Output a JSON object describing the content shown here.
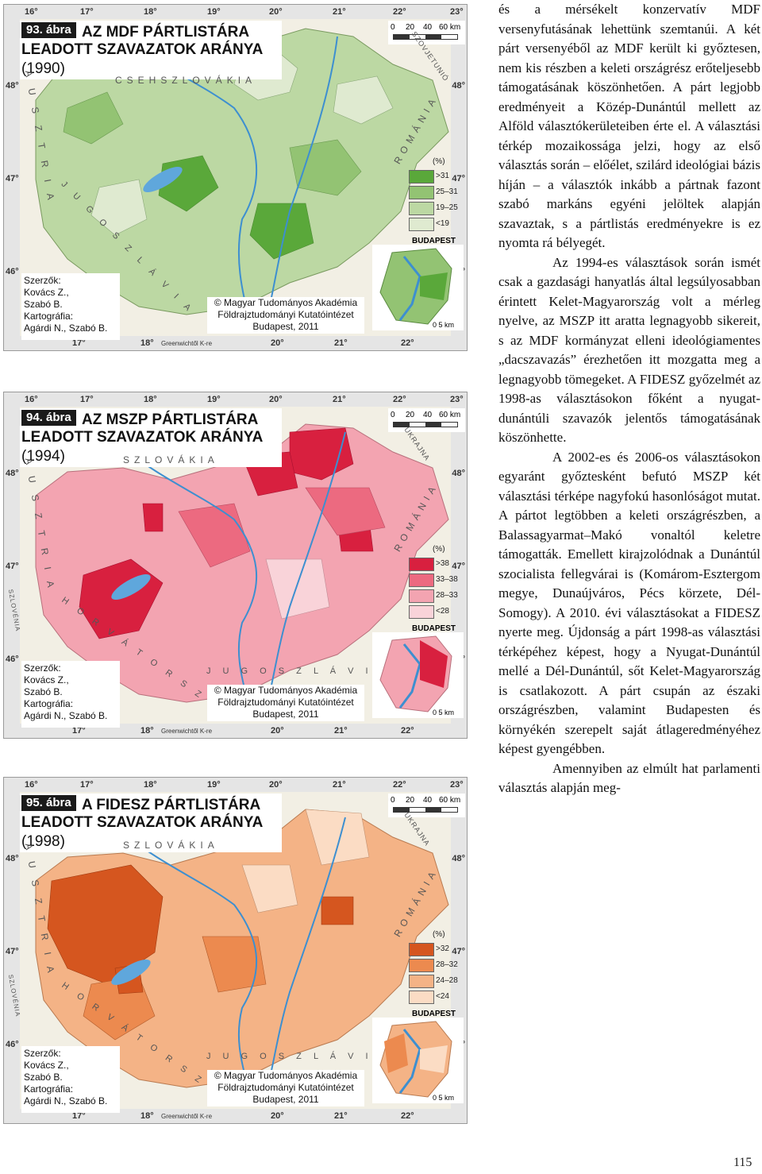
{
  "maps": [
    {
      "fig_num": "93. ábra",
      "title_line1": "AZ MDF PÁRTLISTÁRA",
      "title_line2": "LEADOTT SZAVAZATOK ARÁNYA",
      "year": "(1990)",
      "legend_unit": "(%)",
      "legend": [
        {
          "label": ">31",
          "color": "#5aa83a"
        },
        {
          "label": "25–31",
          "color": "#93c373"
        },
        {
          "label": "19–25",
          "color": "#bcd8a3"
        },
        {
          "label": "<19",
          "color": "#dfead0"
        }
      ],
      "base_color": "#bcd8a3",
      "countries": [
        "CSEHSZLOVÁKIA",
        "SZOVJETUNIÓ",
        "ROMÁNIA",
        "A U S Z T R I A",
        "J U G O S Z L Á V I A"
      ]
    },
    {
      "fig_num": "94. ábra",
      "title_line1": "AZ MSZP PÁRTLISTÁRA",
      "title_line2": "LEADOTT SZAVAZATOK ARÁNYA",
      "year": "(1994)",
      "legend_unit": "(%)",
      "legend": [
        {
          "label": ">38",
          "color": "#d8203f"
        },
        {
          "label": "33–38",
          "color": "#ec6a80"
        },
        {
          "label": "28–33",
          "color": "#f3a4b1"
        },
        {
          "label": "<28",
          "color": "#f9d3d9"
        }
      ],
      "base_color": "#f3a4b1",
      "countries": [
        "SZLOVÁKIA",
        "UKRAJNA",
        "ROMÁNIA",
        "A U S Z T R I A",
        "J U G O S Z L Á V I A",
        "H O R V Á T O R S Z Á G",
        "SZLOVÉNIA"
      ]
    },
    {
      "fig_num": "95. ábra",
      "title_line1": "A FIDESZ PÁRTLISTÁRA",
      "title_line2": "LEADOTT SZAVAZATOK ARÁNYA",
      "year": "(1998)",
      "legend_unit": "(%)",
      "legend": [
        {
          "label": ">32",
          "color": "#d5561f"
        },
        {
          "label": "28–32",
          "color": "#ec8a4f"
        },
        {
          "label": "24–28",
          "color": "#f4b386"
        },
        {
          "label": "<24",
          "color": "#fbdcc4"
        }
      ],
      "base_color": "#f4b386",
      "countries": [
        "SZLOVÁKIA",
        "UKRAJNA",
        "ROMÁNIA",
        "A U S Z T R I A",
        "J U G O S Z L Á V I A",
        "H O R V Á T O R S Z Á G",
        "SZLOVÉNIA"
      ]
    }
  ],
  "common": {
    "lon_top": [
      "16°",
      "17°",
      "18°",
      "19°",
      "20°",
      "21°",
      "22°",
      "23°"
    ],
    "lon_bottom": [
      "17°",
      "18°",
      "Greenwichtől K-re",
      "20°",
      "21°",
      "22°"
    ],
    "lat": [
      "48°",
      "47°",
      "46°"
    ],
    "scale_labels": [
      "0",
      "20",
      "40",
      "60 km"
    ],
    "budapest": "BUDAPEST",
    "bp_scale": "0    5 km",
    "authors": [
      "Szerzők:",
      "Kovács Z.,",
      "Szabó B.",
      "Kartográfia:",
      "Agárdi N., Szabó B."
    ],
    "copyright": [
      "© Magyar Tudományos Akadémia",
      "Földrajztudományi Kutatóintézet",
      "Budapest, 2011"
    ]
  },
  "text": {
    "p1": "és a mérsékelt konzervatív MDF versenyfutásának lehettünk szemtanúi. A két párt versenyéből az MDF került ki győztesen, nem kis részben a keleti országrész erőteljesebb támogatásának köszönhetően. A párt legjobb eredményeit a Közép-Dunántúl mellett az Alföld választókerületeiben érte el. A választási térkép mozaikossága jelzi, hogy az első választás során – előélet, szilárd ideológiai bázis híján – a választók inkább a pártnak fazont szabó markáns egyéni jelöltek alapján szavaztak, s a pártlistás eredményekre is ez nyomta rá bélyegét.",
    "p2": "Az 1994-es választások során ismét csak a gazdasági hanyatlás által legsúlyosabban érintett Kelet-Magyarország volt a mérleg nyelve, az MSZP itt aratta legnagyobb sikereit, s az MDF kormányzat elleni ideológiamentes „dacszavazás” érezhetően itt mozgatta meg a legnagyobb tömegeket. A FIDESZ győzelmét az 1998-as választásokon főként a nyugat-dunántúli szavazók jelentős támogatásának köszönhette.",
    "p3": "A 2002-es és 2006-os választásokon egyaránt győztesként befutó MSZP két választási térképe nagyfokú hasonlóságot mutat. A pártot legtöbben a keleti országrészben, a Balassagyarmat–Makó vonaltól keletre támogatták. Emellett kirajzolódnak a Dunántúl szocialista fellegvárai is (Komárom-Esztergom megye, Dunaújváros, Pécs körzete, Dél-Somogy). A 2010. évi választásokat a FIDESZ nyerte meg. Újdonság a párt 1998-as választási térképéhez képest, hogy a Nyugat-Dunántúl mellé a Dél-Dunántúl, sőt Kelet-Magyarország is csatlakozott. A párt csupán az északi országrészben, valamint Budapesten és környékén szerepelt saját átlageredményéhez képest gyengébben.",
    "p4": "Amennyiben az elmúlt hat parlamenti választás alapján meg-"
  },
  "page_number": "115"
}
